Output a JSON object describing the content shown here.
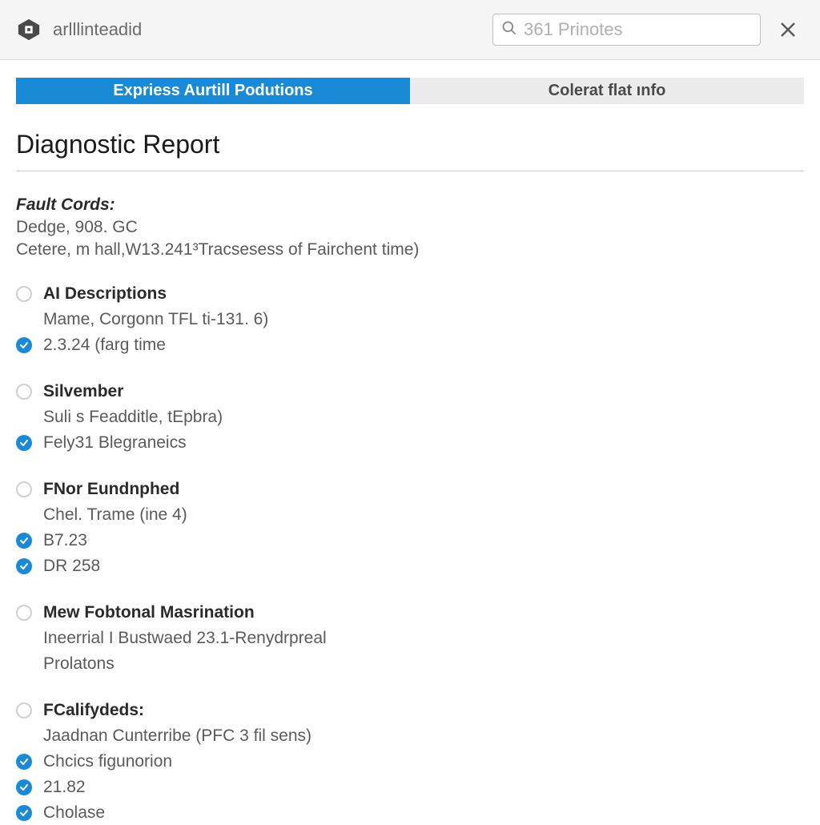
{
  "colors": {
    "accent": "#1a8ad6",
    "header_bg": "#f5f5f5",
    "border": "#d8d8d8",
    "tab_inactive_bg": "#ececec",
    "text_primary": "#2a2a2a",
    "text_secondary": "#5a5a5a",
    "text_muted": "#6b6b6b",
    "marker_empty": "#d0d0d0"
  },
  "header": {
    "app_title": "arlllinteadid",
    "search_placeholder": "361 Prinotes"
  },
  "tabs": {
    "active": "Expriess Aurtill Podutions",
    "inactive": "Colerat flat ınfo"
  },
  "page": {
    "title": "Diagnostic Report"
  },
  "fault_cords": {
    "label": "Fault Cords:",
    "line1": "Dedge, 908. GC",
    "line2": "Cetere, m hall,W13.241³Tracsesess of Fairchent time)"
  },
  "groups": [
    {
      "title": "AI Descriptions",
      "sub": "Mame, Corgonn TFL ti-131. 6)",
      "items": [
        "2.3.24 (farg time"
      ]
    },
    {
      "title": "Silvember",
      "sub": "Suli s Feadditle, tEpbra)",
      "items": [
        "Fely31 Blegraneics"
      ]
    },
    {
      "title": "FNor Eundnphed",
      "sub": "Chel. Trame (ine 4)",
      "items": [
        "B7.23",
        "DR 258"
      ]
    },
    {
      "title": "Mew Fobtonal Masrination",
      "sub": "Ineerrial I Bustwaed 23.1-Renydrpreal",
      "sub2": "Prolatons",
      "items": []
    },
    {
      "title": "FCalifydeds:",
      "sub": "Jaadnan Cunterribe (PFC 3 fil sens)",
      "items": [
        "Chcics figunorion",
        "21.82",
        "Cholase"
      ]
    }
  ]
}
